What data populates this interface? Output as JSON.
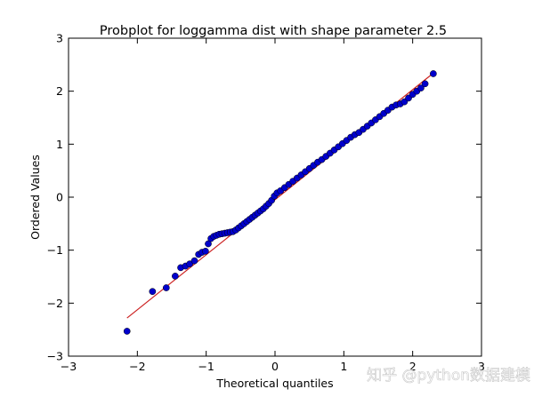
{
  "chart_data": {
    "type": "scatter",
    "title": "Probplot for loggamma dist with shape parameter 2.5",
    "xlabel": "Theoretical quantiles",
    "ylabel": "Ordered Values",
    "xlim": [
      -3,
      3
    ],
    "ylim": [
      -3,
      3
    ],
    "xticks": [
      -3,
      -2,
      -1,
      0,
      1,
      2,
      3
    ],
    "yticks": [
      -3,
      -2,
      -1,
      0,
      1,
      2,
      3
    ],
    "xtick_labels": [
      "−3",
      "−2",
      "−1",
      "0",
      "1",
      "2",
      "3"
    ],
    "ytick_labels": [
      "−3",
      "−2",
      "−1",
      "0",
      "1",
      "2",
      "3"
    ],
    "grid": false,
    "legend": "none",
    "fit_line": {
      "x": [
        -2.15,
        2.3
      ],
      "y": [
        -2.28,
        2.34
      ]
    },
    "series": [
      {
        "marker": "circle",
        "x": [
          -2.15,
          -1.78,
          -1.58,
          -1.45,
          -1.37,
          -1.3,
          -1.24,
          -1.17,
          -1.11,
          -1.06,
          -1.01,
          -0.97,
          -0.93,
          -0.89,
          -0.85,
          -0.81,
          -0.77,
          -0.73,
          -0.69,
          -0.65,
          -0.61,
          -0.57,
          -0.53,
          -0.49,
          -0.45,
          -0.41,
          -0.37,
          -0.33,
          -0.29,
          -0.25,
          -0.21,
          -0.17,
          -0.13,
          -0.09,
          -0.05,
          -0.01,
          0.03,
          0.08,
          0.14,
          0.2,
          0.26,
          0.32,
          0.38,
          0.44,
          0.5,
          0.56,
          0.62,
          0.68,
          0.74,
          0.8,
          0.86,
          0.92,
          0.98,
          1.04,
          1.1,
          1.16,
          1.22,
          1.28,
          1.34,
          1.4,
          1.46,
          1.52,
          1.58,
          1.64,
          1.7,
          1.76,
          1.82,
          1.88,
          1.94,
          2.0,
          2.06,
          2.12,
          2.18,
          2.3
        ],
        "y": [
          -2.53,
          -1.78,
          -1.71,
          -1.49,
          -1.33,
          -1.3,
          -1.26,
          -1.2,
          -1.08,
          -1.04,
          -1.02,
          -0.88,
          -0.78,
          -0.74,
          -0.72,
          -0.7,
          -0.69,
          -0.68,
          -0.67,
          -0.66,
          -0.65,
          -0.62,
          -0.58,
          -0.54,
          -0.5,
          -0.46,
          -0.42,
          -0.38,
          -0.34,
          -0.3,
          -0.26,
          -0.22,
          -0.17,
          -0.12,
          -0.06,
          0.02,
          0.08,
          0.12,
          0.18,
          0.24,
          0.3,
          0.36,
          0.42,
          0.48,
          0.54,
          0.6,
          0.66,
          0.71,
          0.77,
          0.83,
          0.89,
          0.95,
          1.01,
          1.07,
          1.13,
          1.18,
          1.22,
          1.28,
          1.34,
          1.4,
          1.46,
          1.52,
          1.58,
          1.64,
          1.7,
          1.74,
          1.76,
          1.8,
          1.87,
          1.94,
          2.0,
          2.06,
          2.14,
          2.33
        ]
      }
    ]
  },
  "colors": {
    "points": "#0000cc",
    "point_edge": "#000000",
    "fit_line": "#cc2222"
  },
  "watermark": {
    "text": "知乎 @python数据建模"
  }
}
